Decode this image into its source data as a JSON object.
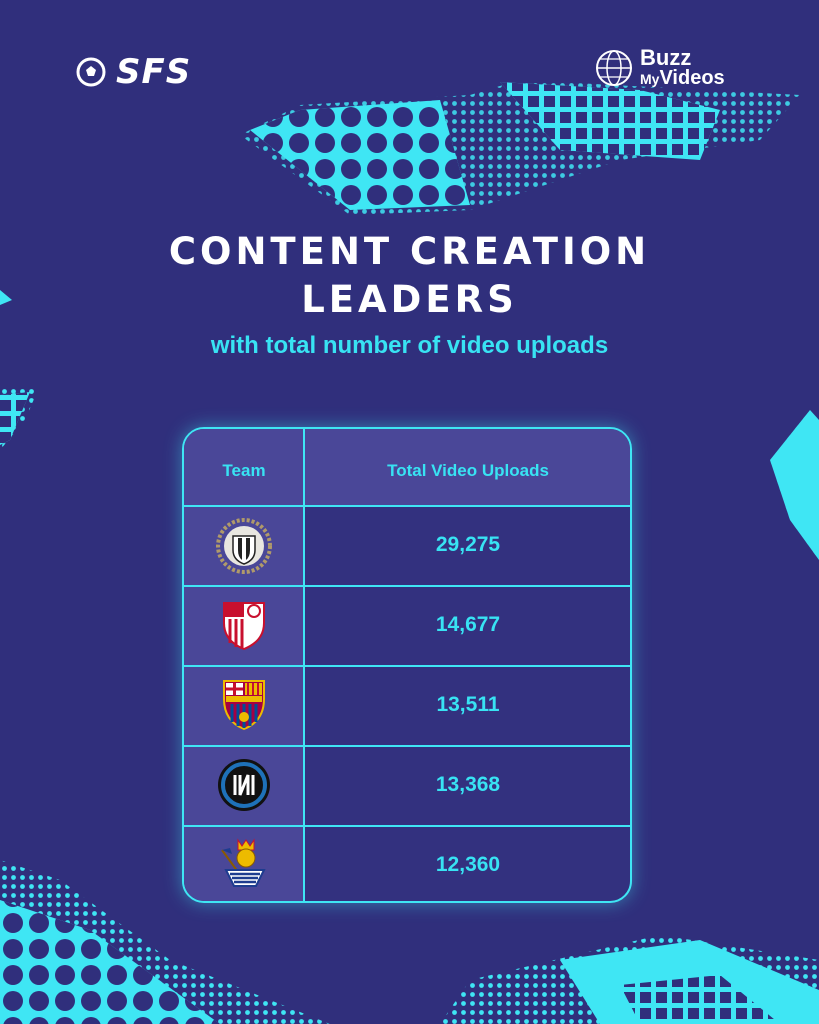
{
  "brand": {
    "sfs": "SFS",
    "bmv_line1": "Buzz",
    "bmv_my": "My",
    "bmv_videos": "Videos"
  },
  "title_line1": "CONTENT CREATION",
  "title_line2": "LEADERS",
  "subtitle": "with total number of video uploads",
  "table": {
    "headers": [
      "Team",
      "Total Video Uploads"
    ],
    "rows": [
      {
        "team_icon": "udinese-crest-icon",
        "value": "29,275"
      },
      {
        "team_icon": "sevilla-crest-icon",
        "value": "14,677"
      },
      {
        "team_icon": "barcelona-crest-icon",
        "value": "13,511"
      },
      {
        "team_icon": "inter-crest-icon",
        "value": "13,368"
      },
      {
        "team_icon": "real-sociedad-crest-icon",
        "value": "12,360"
      }
    ]
  },
  "colors": {
    "background": "#302f7c",
    "accent": "#38e3f3",
    "panel": "#4a4798"
  }
}
